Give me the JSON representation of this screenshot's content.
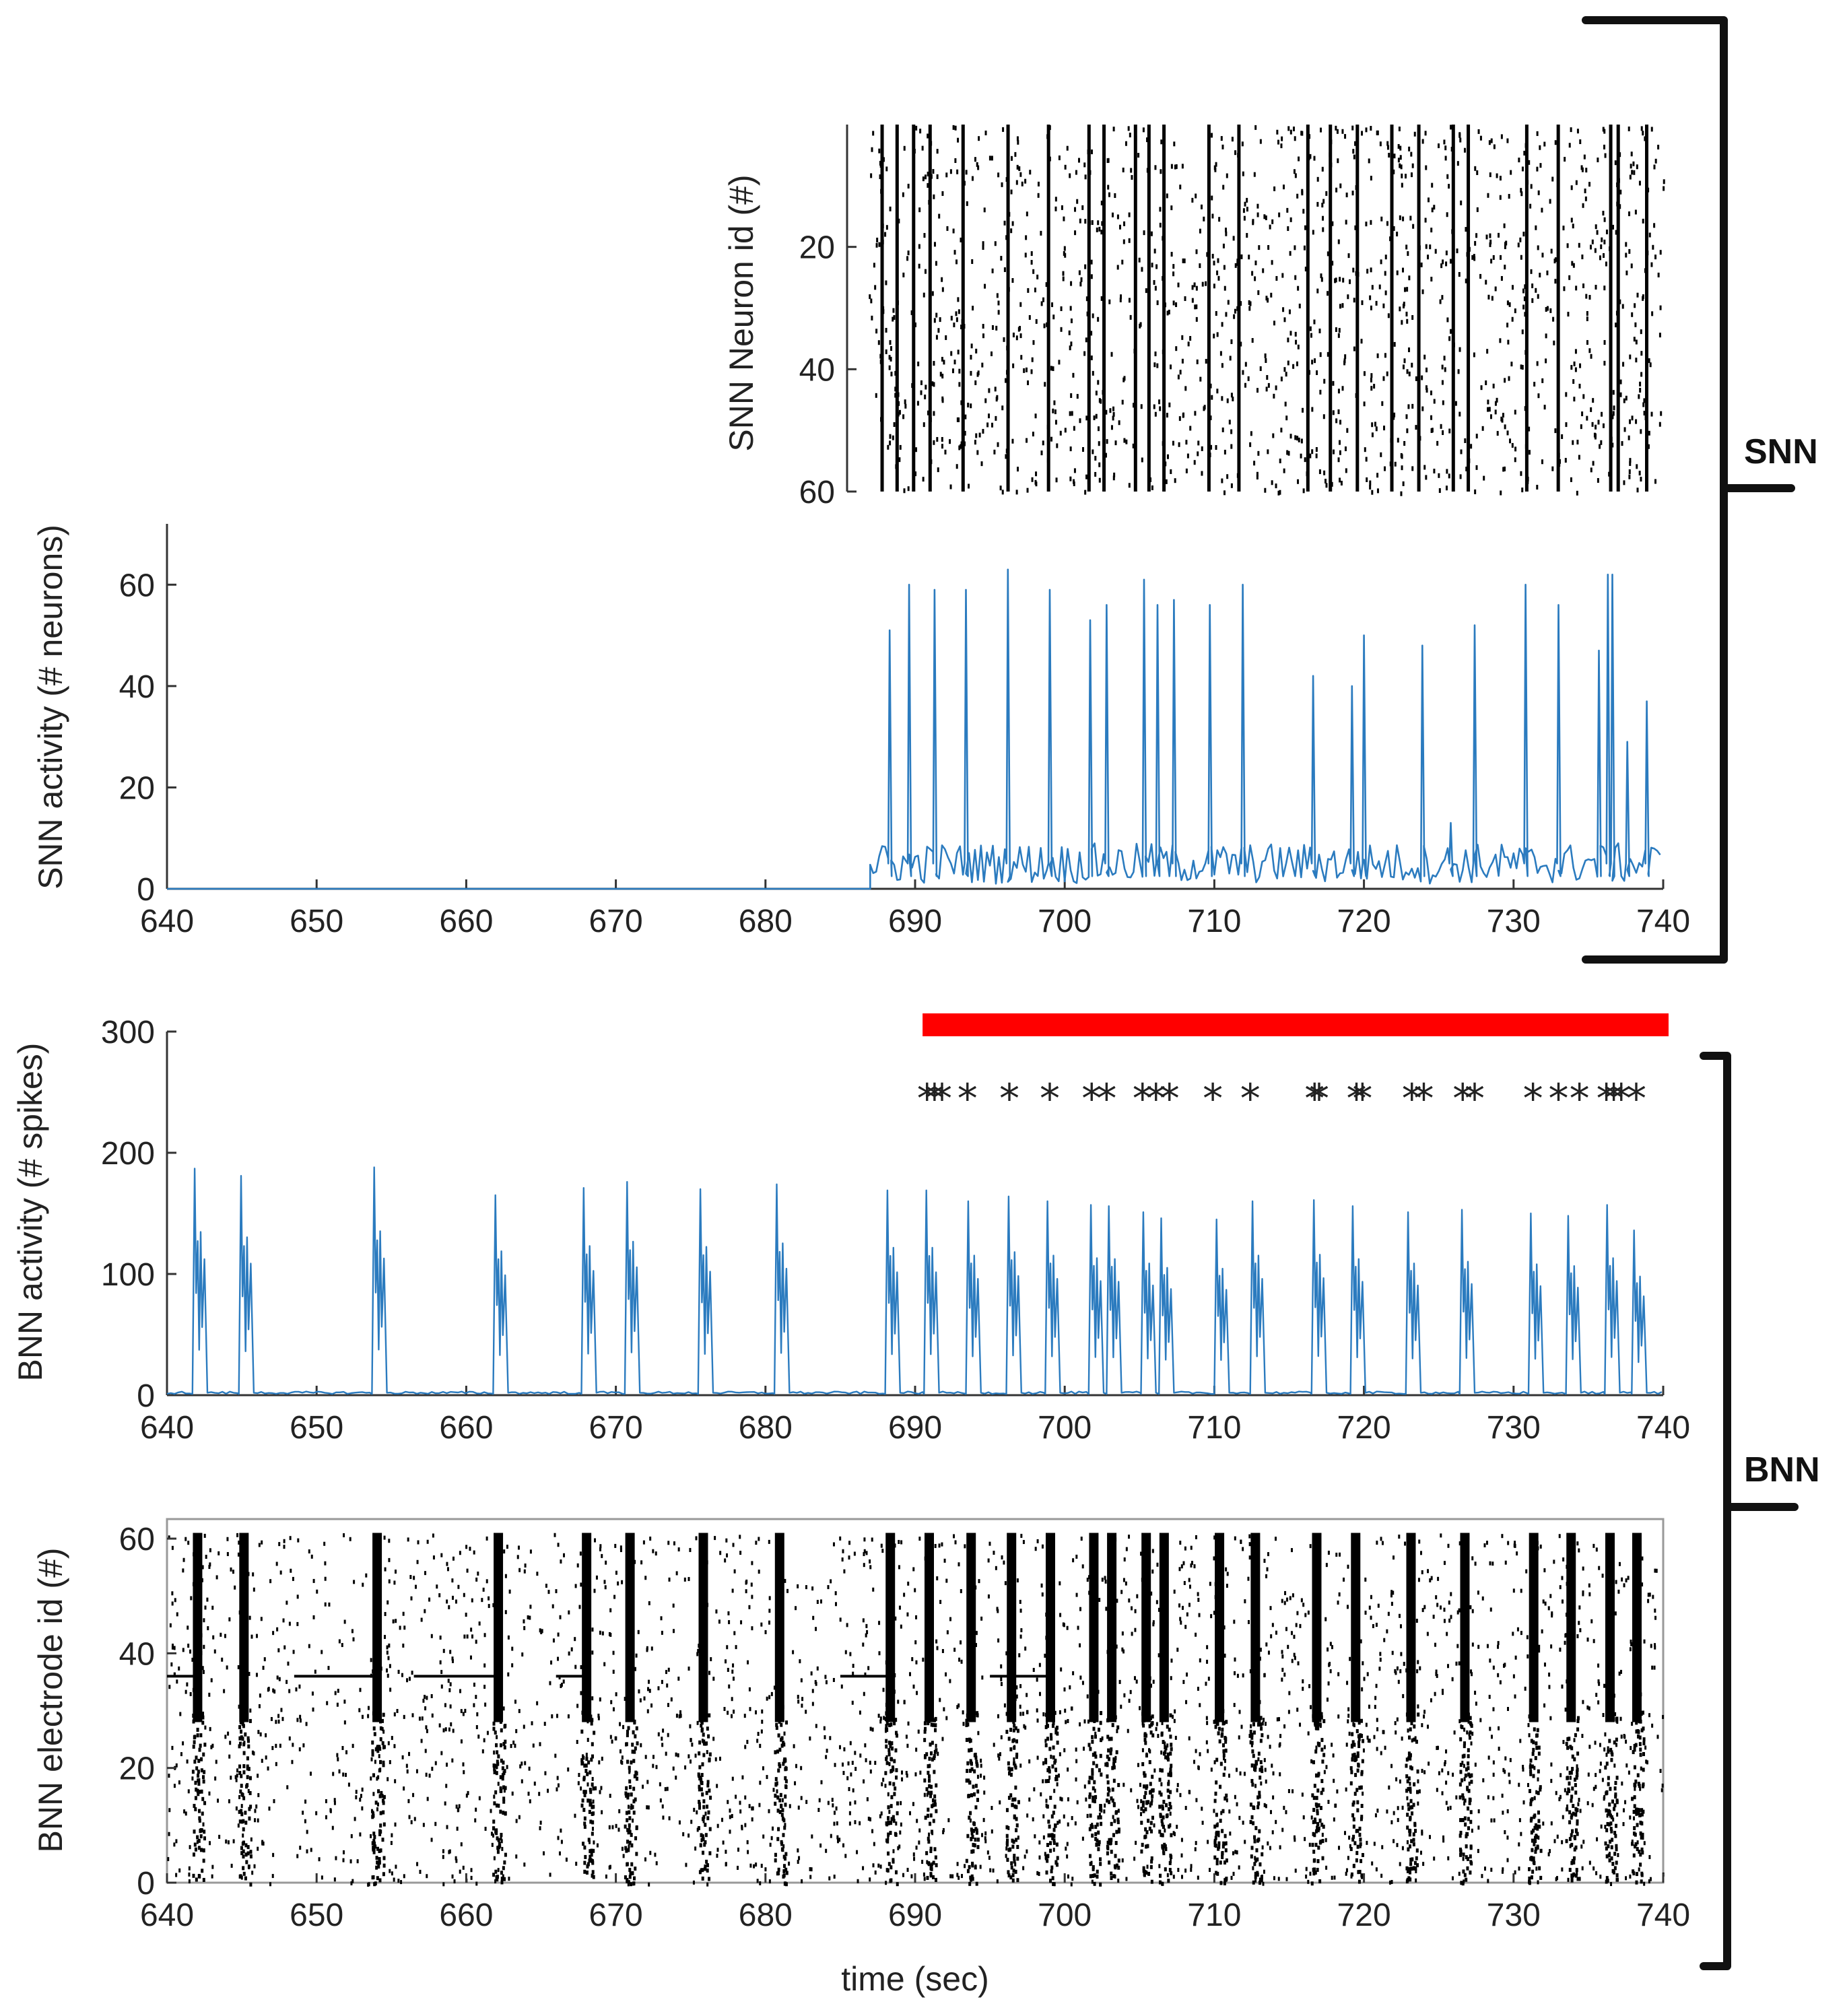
{
  "colors": {
    "trace": "#2b7bbf",
    "stimulus_bar": "#ff0000",
    "spike": "#000000",
    "axis": "#333333"
  },
  "groups": {
    "snn_label": "SNN",
    "bnn_label": "BNN"
  },
  "chart_data": [
    {
      "id": "snn_raster",
      "type": "scatter",
      "ylabel": "SNN Neuron id (#)",
      "yticks": [
        "20",
        "40",
        "60"
      ],
      "ytick_values": [
        20,
        40,
        60
      ],
      "xlim": [
        687,
        740
      ],
      "ylim": [
        0,
        60
      ],
      "y_reversed": true,
      "note": "raster of SNN spikes over 60 neurons, shown from ~687 s",
      "burst_times": [
        687.9,
        688.9,
        690.0,
        691.1,
        693.3,
        696.3,
        699.0,
        701.7,
        702.7,
        704.8,
        705.7,
        706.7,
        709.7,
        711.7,
        716.3,
        717.8,
        719.6,
        721.9,
        723.7,
        726.0,
        727.0,
        730.9,
        733.0,
        736.5,
        737.0,
        738.9
      ]
    },
    {
      "id": "snn_activity",
      "type": "line",
      "ylabel": "SNN activity (# neurons)",
      "xlim": [
        640,
        740
      ],
      "ylim": [
        0,
        72
      ],
      "xticks": [
        "640",
        "650",
        "660",
        "670",
        "680",
        "690",
        "700",
        "710",
        "720",
        "730",
        "740"
      ],
      "xtick_values": [
        640,
        650,
        660,
        670,
        680,
        690,
        700,
        710,
        720,
        730,
        740
      ],
      "yticks": [
        "0",
        "20",
        "40",
        "60"
      ],
      "ytick_values": [
        0,
        20,
        40,
        60
      ],
      "onset": 687,
      "baseline_level": 5,
      "series": [
        {
          "name": "SNN activity",
          "peak_times": [
            688.3,
            689.6,
            691.3,
            693.4,
            696.2,
            699.0,
            701.7,
            702.8,
            705.3,
            706.2,
            707.3,
            709.7,
            711.9,
            716.6,
            719.2,
            720.0,
            723.9,
            725.8,
            727.4,
            730.8,
            733.0,
            735.7,
            736.3,
            736.6,
            737.6,
            738.9
          ],
          "peak_values": [
            51,
            60,
            59,
            59,
            63,
            59,
            53,
            56,
            61,
            56,
            57,
            56,
            60,
            42,
            40,
            50,
            48,
            13,
            52,
            60,
            56,
            47,
            62,
            62,
            29,
            37
          ]
        }
      ]
    },
    {
      "id": "bnn_activity",
      "type": "line",
      "ylabel": "BNN activity (# spikes)",
      "xlim": [
        640,
        740
      ],
      "ylim": [
        0,
        300
      ],
      "xticks": [
        "640",
        "650",
        "660",
        "670",
        "680",
        "690",
        "700",
        "710",
        "720",
        "730",
        "740"
      ],
      "xtick_values": [
        640,
        650,
        660,
        670,
        680,
        690,
        700,
        710,
        720,
        730,
        740
      ],
      "yticks": [
        "0",
        "100",
        "200",
        "300"
      ],
      "ytick_values": [
        0,
        100,
        200,
        300
      ],
      "stimulation_interval": [
        690.5,
        740
      ],
      "marker_level": 250,
      "marker_symbol": "*",
      "marker_times": [
        690.8,
        691.3,
        691.8,
        693.5,
        696.3,
        699.0,
        701.8,
        702.8,
        705.2,
        706.1,
        707.0,
        709.9,
        712.4,
        716.7,
        717.0,
        719.5,
        719.9,
        723.2,
        724.0,
        726.6,
        727.4,
        731.3,
        733.0,
        734.4,
        736.2,
        736.7,
        737.2,
        738.2
      ],
      "series": [
        {
          "name": "BNN activity",
          "burst_times": [
            642.0,
            645.1,
            654.0,
            662.1,
            668.0,
            670.9,
            675.8,
            680.9,
            688.3,
            690.9,
            693.7,
            696.4,
            699.0,
            701.9,
            703.1,
            705.4,
            706.6,
            710.3,
            712.7,
            716.8,
            719.4,
            723.1,
            726.7,
            731.3,
            733.8,
            736.4,
            738.2
          ],
          "burst_peaks": [
            187,
            181,
            188,
            165,
            171,
            176,
            170,
            174,
            169,
            169,
            160,
            164,
            160,
            157,
            156,
            151,
            146,
            145,
            160,
            161,
            156,
            151,
            153,
            150,
            148,
            157,
            136
          ]
        }
      ]
    },
    {
      "id": "bnn_raster",
      "type": "scatter",
      "ylabel": "BNN electrode  id (#)",
      "xlabel": "time (sec)",
      "xlim": [
        640,
        740
      ],
      "ylim": [
        0,
        62
      ],
      "xticks": [
        "640",
        "650",
        "660",
        "670",
        "680",
        "690",
        "700",
        "710",
        "720",
        "730",
        "740"
      ],
      "xtick_values": [
        640,
        650,
        660,
        670,
        680,
        690,
        700,
        710,
        720,
        730,
        740
      ],
      "yticks": [
        "0",
        "20",
        "40",
        "60"
      ],
      "ytick_values": [
        0,
        20,
        40,
        60
      ],
      "tonic_electrode": 36,
      "tonic_segments": [
        [
          640,
          642
        ],
        [
          648.5,
          654
        ],
        [
          656.5,
          662
        ],
        [
          666,
          668
        ],
        [
          685,
          688.5
        ],
        [
          695,
          699
        ]
      ],
      "burst_times": [
        642.0,
        645.1,
        654.0,
        662.1,
        668.0,
        670.9,
        675.8,
        680.9,
        688.3,
        690.9,
        693.7,
        696.4,
        699.0,
        701.9,
        703.1,
        705.4,
        706.6,
        710.3,
        712.7,
        716.8,
        719.4,
        723.1,
        726.7,
        731.3,
        733.8,
        736.4,
        738.2
      ]
    }
  ]
}
